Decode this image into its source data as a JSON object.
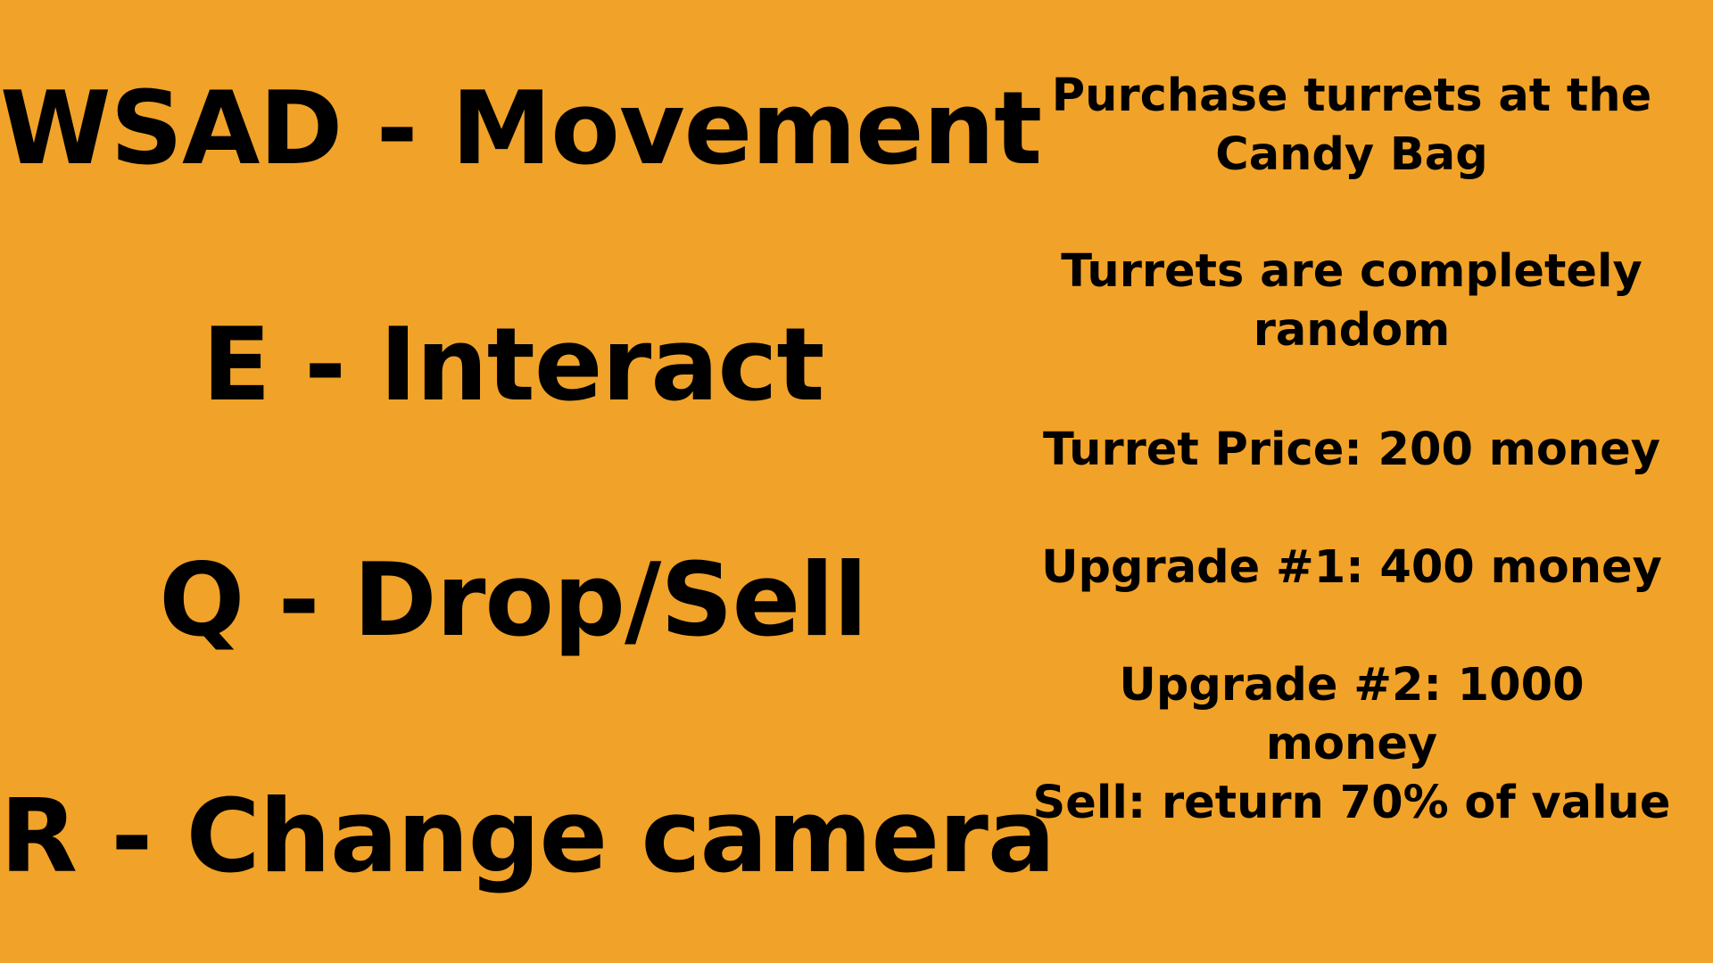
{
  "background_color": "#F1A228",
  "text_color": "#000000",
  "controls": [
    {
      "label": "WSAD - Movement"
    },
    {
      "label": "E - Interact"
    },
    {
      "label": "Q - Drop/Sell"
    },
    {
      "label": "R - Change camera"
    }
  ],
  "tips": [
    {
      "text": "Purchase turrets at the Candy Bag"
    },
    {
      "text": "Turrets are completely random"
    },
    {
      "text": "Turret Price: 200 money"
    },
    {
      "text": "Upgrade #1: 400 money"
    },
    {
      "text": "Upgrade #2: 1000 money"
    },
    {
      "text": "Sell: return 70% of value"
    }
  ]
}
